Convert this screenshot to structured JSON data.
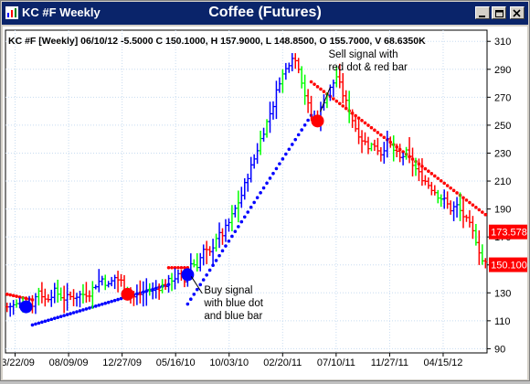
{
  "window": {
    "title_left": "KC #F Weekly",
    "title_center": "Coffee (Futures)",
    "buttons": [
      "minimize",
      "restore",
      "close"
    ]
  },
  "chart_data": {
    "type": "bar",
    "style": "OHLC price bars with trailing-stop dots",
    "header_text": "KC #F [Weekly] 06/10/12  -5.5000 C 150.1000, H 157.9000, L 148.8500, O 155.7000, V 68.6350K",
    "y_axis": {
      "ticks": [
        90,
        110,
        130,
        150,
        170,
        190,
        210,
        230,
        250,
        270,
        290,
        310
      ],
      "range": [
        87,
        318
      ]
    },
    "x_axis": {
      "tick_labels": [
        "03/22/09",
        "08/09/09",
        "12/27/09",
        "05/16/10",
        "10/03/10",
        "02/20/11",
        "07/10/11",
        "11/27/11",
        "04/15/12"
      ],
      "tick_count": 9
    },
    "price_path": [
      [
        0,
        120
      ],
      [
        4,
        122
      ],
      [
        8,
        122
      ],
      [
        10,
        132
      ],
      [
        12,
        125
      ],
      [
        15,
        131
      ],
      [
        18,
        126
      ],
      [
        22,
        128
      ],
      [
        26,
        130
      ],
      [
        28,
        136
      ],
      [
        30,
        140
      ],
      [
        32,
        135
      ],
      [
        34,
        141
      ],
      [
        36,
        138
      ],
      [
        38,
        131
      ],
      [
        40,
        127
      ],
      [
        42,
        129
      ],
      [
        44,
        132
      ],
      [
        46,
        131
      ],
      [
        48,
        134
      ],
      [
        50,
        136
      ],
      [
        52,
        140
      ],
      [
        54,
        142
      ],
      [
        56,
        138
      ],
      [
        58,
        151
      ],
      [
        60,
        150
      ],
      [
        62,
        160
      ],
      [
        64,
        158
      ],
      [
        66,
        170
      ],
      [
        68,
        172
      ],
      [
        70,
        180
      ],
      [
        72,
        190
      ],
      [
        74,
        200
      ],
      [
        76,
        214
      ],
      [
        78,
        226
      ],
      [
        80,
        240
      ],
      [
        82,
        252
      ],
      [
        84,
        265
      ],
      [
        86,
        282
      ],
      [
        88,
        290
      ],
      [
        90,
        300
      ],
      [
        92,
        292
      ],
      [
        94,
        272
      ],
      [
        96,
        256
      ],
      [
        98,
        255
      ],
      [
        100,
        268
      ],
      [
        102,
        276
      ],
      [
        104,
        285
      ],
      [
        106,
        272
      ],
      [
        108,
        260
      ],
      [
        110,
        248
      ],
      [
        112,
        240
      ],
      [
        114,
        235
      ],
      [
        116,
        236
      ],
      [
        118,
        230
      ],
      [
        120,
        238
      ],
      [
        122,
        232
      ],
      [
        124,
        226
      ],
      [
        126,
        230
      ],
      [
        128,
        222
      ],
      [
        130,
        215
      ],
      [
        132,
        210
      ],
      [
        134,
        205
      ],
      [
        136,
        200
      ],
      [
        138,
        196
      ],
      [
        140,
        190
      ],
      [
        142,
        192
      ],
      [
        144,
        185
      ],
      [
        146,
        178
      ],
      [
        148,
        168
      ],
      [
        150,
        153
      ],
      [
        151,
        151
      ]
    ],
    "stop_segments": [
      {
        "from": 0,
        "to": 8,
        "color": "red",
        "start": 129,
        "end": 125
      },
      {
        "from": 8,
        "to": 51,
        "color": "blue",
        "start": 107,
        "end": 136
      },
      {
        "from": 51,
        "to": 57,
        "color": "red",
        "start": 148,
        "end": 148
      },
      {
        "from": 57,
        "to": 96,
        "color": "blue",
        "start": 122,
        "end": 257
      },
      {
        "from": 96,
        "to": 151,
        "color": "red",
        "start": 281,
        "end": 186
      }
    ],
    "colors": {
      "up": "#0000ff",
      "mixed": "#00ff00",
      "down": "#ff0000",
      "stop_blue": "#0000ff",
      "stop_red": "#ff0000"
    },
    "signals": [
      {
        "type": "buy",
        "week": 6,
        "price": 120
      },
      {
        "type": "sell",
        "week": 38,
        "price": 129
      },
      {
        "type": "buy",
        "week": 57,
        "price": 143
      },
      {
        "type": "sell",
        "week": 98,
        "price": 253
      }
    ],
    "price_labels": [
      {
        "value": "173.578",
        "price": 173.578
      },
      {
        "value": "150.100",
        "price": 150.1
      }
    ],
    "annotations": [
      {
        "id": "sell",
        "text_lines": [
          "Sell signal with",
          "red dot & red bar"
        ]
      },
      {
        "id": "buy",
        "text_lines": [
          "Buy signal",
          "with blue dot",
          "and blue bar"
        ]
      }
    ],
    "grid": true
  }
}
